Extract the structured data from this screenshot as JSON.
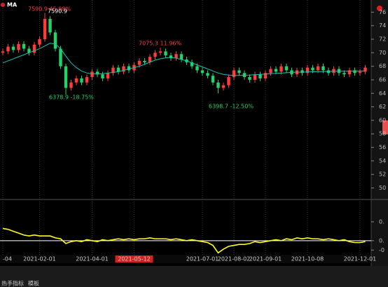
{
  "chart_data": {
    "type": "candlestick",
    "indicator": "MA",
    "categories": [
      "-04",
      null,
      null,
      null,
      null,
      null,
      null,
      "2021-02-01",
      null,
      null,
      null,
      null,
      null,
      null,
      null,
      null,
      null,
      "2021-04-01",
      null,
      null,
      null,
      null,
      null,
      null,
      null,
      "2021-05-12",
      null,
      null,
      null,
      null,
      null,
      null,
      null,
      null,
      null,
      null,
      null,
      null,
      "2021-07-01",
      null,
      null,
      null,
      null,
      null,
      "2021-08-02",
      null,
      null,
      null,
      null,
      null,
      "2021-09-01",
      null,
      null,
      null,
      null,
      null,
      null,
      null,
      "2021-10-08",
      null,
      null,
      null,
      null,
      null,
      null,
      null,
      null,
      null,
      "2021-12-01",
      null
    ],
    "cursor": 25,
    "open": [
      7000,
      7020,
      7090,
      7040,
      7130,
      7060,
      7000,
      7120,
      7200,
      7500,
      7300,
      7060,
      6800,
      6480,
      6560,
      6620,
      6560,
      6640,
      6720,
      6680,
      6620,
      6700,
      6780,
      6720,
      6800,
      6740,
      6820,
      6880,
      6860,
      6940,
      7000,
      7020,
      6960,
      6920,
      6980,
      6900,
      6860,
      6800,
      6740,
      6700,
      6660,
      6560,
      6480,
      6520,
      6640,
      6740,
      6700,
      6640,
      6600,
      6680,
      6620,
      6700,
      6760,
      6720,
      6800,
      6740,
      6680,
      6740,
      6700,
      6780,
      6740,
      6800,
      6740,
      6700,
      6760,
      6700,
      6680,
      6740,
      6700,
      6720
    ],
    "high": [
      7060,
      7130,
      7130,
      7170,
      7170,
      7100,
      7160,
      7240,
      7590.9,
      7540,
      7340,
      7100,
      6840,
      6600,
      6660,
      6660,
      6680,
      6760,
      6760,
      6720,
      6740,
      6820,
      6820,
      6840,
      6840,
      6860,
      6920,
      6920,
      6980,
      7040,
      7075.3,
      7060,
      7000,
      7020,
      7020,
      6940,
      6900,
      6840,
      6780,
      6740,
      6700,
      6600,
      6560,
      6680,
      6780,
      6780,
      6740,
      6680,
      6720,
      6720,
      6740,
      6800,
      6800,
      6840,
      6840,
      6780,
      6780,
      6780,
      6820,
      6820,
      6840,
      6840,
      6780,
      6800,
      6800,
      6740,
      6780,
      6780,
      6760,
      6820
    ],
    "low": [
      6960,
      6980,
      7000,
      7000,
      7020,
      6960,
      6960,
      7080,
      7160,
      7260,
      7020,
      6760,
      6378.9,
      6440,
      6520,
      6520,
      6520,
      6600,
      6640,
      6580,
      6580,
      6660,
      6680,
      6680,
      6700,
      6700,
      6780,
      6820,
      6820,
      6900,
      6960,
      6920,
      6880,
      6880,
      6860,
      6820,
      6760,
      6700,
      6660,
      6620,
      6520,
      6398.7,
      6440,
      6480,
      6600,
      6660,
      6600,
      6560,
      6560,
      6580,
      6580,
      6660,
      6680,
      6680,
      6700,
      6640,
      6640,
      6660,
      6660,
      6700,
      6700,
      6700,
      6660,
      6660,
      6660,
      6640,
      6640,
      6660,
      6660,
      6680
    ],
    "close": [
      7020,
      7090,
      7040,
      7130,
      7060,
      7000,
      7120,
      7200,
      7500,
      7300,
      7060,
      6800,
      6480,
      6560,
      6620,
      6560,
      6640,
      6720,
      6680,
      6620,
      6700,
      6780,
      6720,
      6800,
      6740,
      6820,
      6880,
      6860,
      6940,
      7000,
      7020,
      6960,
      6920,
      6980,
      6900,
      6860,
      6800,
      6740,
      6700,
      6660,
      6560,
      6480,
      6520,
      6640,
      6740,
      6700,
      6640,
      6600,
      6680,
      6620,
      6700,
      6760,
      6720,
      6800,
      6740,
      6680,
      6740,
      6700,
      6780,
      6740,
      6800,
      6740,
      6700,
      6760,
      6700,
      6680,
      6740,
      6700,
      6720,
      6780
    ],
    "up_color": "#ff3b3b",
    "down_color": "#21d46a",
    "ma": {
      "color": "#19c3b4",
      "values": [
        6850,
        6880,
        6910,
        6940,
        6970,
        7000,
        7030,
        7060,
        7100,
        7140,
        7130,
        7060,
        6950,
        6850,
        6780,
        6730,
        6700,
        6690,
        6685,
        6690,
        6700,
        6710,
        6720,
        6740,
        6760,
        6780,
        6800,
        6830,
        6860,
        6890,
        6910,
        6925,
        6930,
        6920,
        6900,
        6880,
        6850,
        6820,
        6790,
        6760,
        6730,
        6700,
        6680,
        6670,
        6665,
        6665,
        6668,
        6670,
        6675,
        6680,
        6685,
        6690,
        6695,
        6700,
        6705,
        6710,
        6712,
        6714,
        6716,
        6718,
        6720,
        6722,
        6724,
        6725,
        6726,
        6727,
        6728,
        6728,
        6729,
        6730
      ]
    },
    "annotations": [
      {
        "label": "7590.9 45.98%",
        "color": "#ff3b3b"
      },
      {
        "label": "7590.9",
        "color": "#ffffff"
      },
      {
        "label": "7075.3 11.96%",
        "color": "#ff3b3b"
      },
      {
        "label": "6378.9 -18.75%",
        "color": "#21d46a"
      },
      {
        "label": "6398.7 -12.50%",
        "color": "#21d46a"
      }
    ],
    "ylim": [
      4850,
      7780
    ],
    "yticks": [
      {
        "value": 5000,
        "label": "50"
      },
      {
        "value": 5200,
        "label": "52"
      },
      {
        "value": 5400,
        "label": "54"
      },
      {
        "value": 5600,
        "label": "56"
      },
      {
        "value": 5800,
        "label": "58"
      },
      {
        "value": 6000,
        "label": "60"
      },
      {
        "value": 6200,
        "label": "62"
      },
      {
        "value": 6400,
        "label": "64"
      },
      {
        "value": 6600,
        "label": "66"
      },
      {
        "value": 6800,
        "label": "68"
      },
      {
        "value": 7000,
        "label": "70"
      },
      {
        "value": 7200,
        "label": "72"
      },
      {
        "value": 7400,
        "label": "74"
      },
      {
        "value": 7600,
        "label": "76"
      }
    ],
    "oscillator": {
      "color": "#ffff1e",
      "reference": 0,
      "reference_color": "#ffffff",
      "values": [
        0.13,
        0.12,
        0.1,
        0.08,
        0.06,
        0.05,
        0.06,
        0.05,
        0.05,
        0.05,
        0.03,
        0.02,
        -0.03,
        -0.01,
        0.0,
        -0.01,
        0.01,
        0.0,
        -0.01,
        0.01,
        0.0,
        0.01,
        0.02,
        0.01,
        0.02,
        0.01,
        0.02,
        0.02,
        0.03,
        0.02,
        0.02,
        0.02,
        0.01,
        0.02,
        0.01,
        0.0,
        0.01,
        0.0,
        -0.01,
        -0.02,
        -0.05,
        -0.13,
        -0.09,
        -0.06,
        -0.05,
        -0.04,
        -0.04,
        -0.03,
        -0.01,
        -0.02,
        -0.01,
        0.0,
        0.01,
        0.0,
        0.02,
        0.01,
        0.03,
        0.02,
        0.03,
        0.02,
        0.02,
        0.01,
        0.02,
        0.01,
        0.0,
        0.01,
        -0.01,
        -0.02,
        -0.02,
        -0.01
      ],
      "ylim": [
        -0.15,
        0.4
      ],
      "yticks": [
        {
          "value": -0.1,
          "label": "-0"
        },
        {
          "value": 0.0,
          "label": "0."
        },
        {
          "value": 0.2,
          "label": "0."
        }
      ]
    },
    "tabs": [
      "热手指标",
      "模板"
    ]
  }
}
